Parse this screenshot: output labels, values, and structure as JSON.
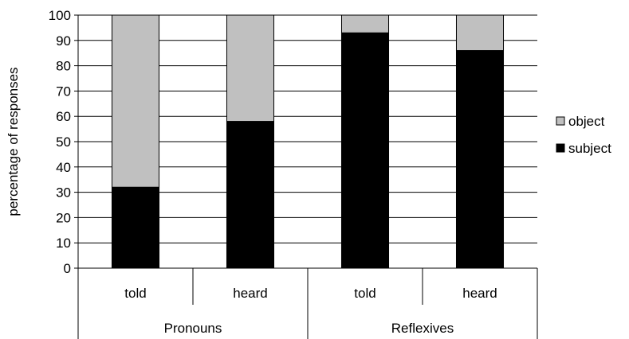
{
  "chart_data": {
    "type": "bar",
    "stacked": true,
    "ylabel": "percentage of responses",
    "ylim": [
      0,
      100
    ],
    "yticks": [
      0,
      10,
      20,
      30,
      40,
      50,
      60,
      70,
      80,
      90,
      100
    ],
    "grid": true,
    "legend_position": "right",
    "groups": [
      {
        "label": "Pronouns",
        "categories": [
          "told",
          "heard"
        ]
      },
      {
        "label": "Reflexives",
        "categories": [
          "told",
          "heard"
        ]
      }
    ],
    "series": [
      {
        "name": "subject",
        "color": "#000000",
        "values": [
          32,
          58,
          93,
          86
        ]
      },
      {
        "name": "object",
        "color": "#c0c0c0",
        "values": [
          68,
          42,
          7,
          14
        ]
      }
    ],
    "legend_order": [
      "object",
      "subject"
    ]
  }
}
